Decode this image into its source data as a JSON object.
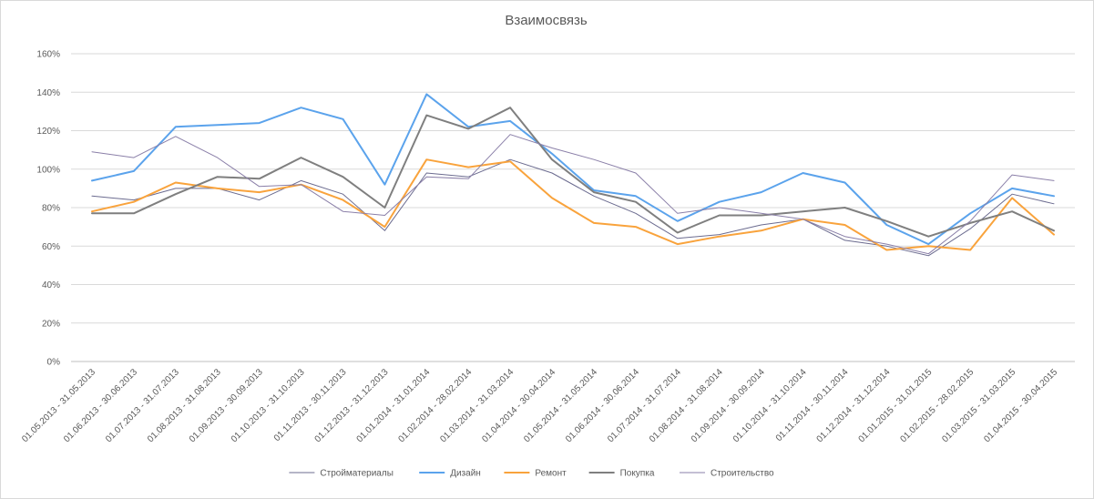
{
  "chart_data": {
    "type": "line",
    "title": "Взаимосвязь",
    "xlabel": "",
    "ylabel": "",
    "ylim": [
      0,
      1.6
    ],
    "y_ticks": [
      "0%",
      "20%",
      "40%",
      "60%",
      "80%",
      "100%",
      "120%",
      "140%",
      "160%"
    ],
    "grid": true,
    "legend_position": "bottom",
    "categories": [
      "01.05.2013 - 31.05.2013",
      "01.06.2013 - 30.06.2013",
      "01.07.2013 - 31.07.2013",
      "01.08.2013 - 31.08.2013",
      "01.09.2013 - 30.09.2013",
      "01.10.2013 - 31.10.2013",
      "01.11.2013 - 30.11.2013",
      "01.12.2013 - 31.12.2013",
      "01.01.2014 - 31.01.2014",
      "01.02.2014 - 28.02.2014",
      "01.03.2014 - 31.03.2014",
      "01.04.2014 - 30.04.2014",
      "01.05.2014 - 31.05.2014",
      "01.06.2014 - 30.06.2014",
      "01.07.2014 - 31.07.2014",
      "01.08.2014 - 31.08.2014",
      "01.09.2014 - 30.09.2014",
      "01.10.2014 - 31.10.2014",
      "01.11.2014 - 30.11.2014",
      "01.12.2014 - 31.12.2014",
      "01.01.2015 - 31.01.2015",
      "01.02.2015 - 28.02.2015",
      "01.03.2015 - 31.03.2015",
      "01.04.2015 - 30.04.2015"
    ],
    "series": [
      {
        "name": "Стройматериалы",
        "color": "#6b6b8f",
        "width": 1,
        "values": [
          0.86,
          0.84,
          0.9,
          0.9,
          0.84,
          0.94,
          0.87,
          0.68,
          0.98,
          0.96,
          1.05,
          0.98,
          0.86,
          0.77,
          0.64,
          0.66,
          0.71,
          0.74,
          0.63,
          0.6,
          0.55,
          0.69,
          0.87,
          0.82
        ]
      },
      {
        "name": "Дизайн",
        "color": "#5ba3ec",
        "width": 2,
        "values": [
          0.94,
          0.99,
          1.22,
          1.23,
          1.24,
          1.32,
          1.26,
          0.92,
          1.39,
          1.22,
          1.25,
          1.08,
          0.89,
          0.86,
          0.73,
          0.83,
          0.88,
          0.98,
          0.93,
          0.71,
          0.61,
          0.77,
          0.9,
          0.86
        ]
      },
      {
        "name": "Ремонт",
        "color": "#f9a33c",
        "width": 2,
        "values": [
          0.78,
          0.83,
          0.93,
          0.9,
          0.88,
          0.92,
          0.84,
          0.7,
          1.05,
          1.01,
          1.04,
          0.85,
          0.72,
          0.7,
          0.61,
          0.65,
          0.68,
          0.74,
          0.71,
          0.58,
          0.6,
          0.58,
          0.85,
          0.66
        ]
      },
      {
        "name": "Покупка",
        "color": "#7f7f7f",
        "width": 2,
        "values": [
          0.77,
          0.77,
          0.87,
          0.96,
          0.95,
          1.06,
          0.96,
          0.8,
          1.28,
          1.21,
          1.32,
          1.05,
          0.88,
          0.83,
          0.67,
          0.76,
          0.76,
          0.78,
          0.8,
          0.73,
          0.65,
          0.72,
          0.78,
          0.68
        ]
      },
      {
        "name": "Строительство",
        "color": "#8a7fa8",
        "width": 1,
        "values": [
          1.09,
          1.06,
          1.17,
          1.06,
          0.91,
          0.92,
          0.78,
          0.76,
          0.96,
          0.95,
          1.18,
          1.11,
          1.05,
          0.98,
          0.77,
          0.8,
          0.77,
          0.74,
          0.65,
          0.61,
          0.56,
          0.73,
          0.97,
          0.94
        ]
      }
    ]
  }
}
